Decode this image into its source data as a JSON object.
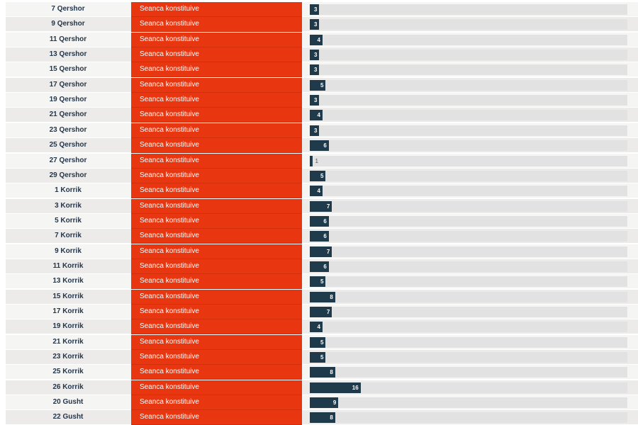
{
  "chart_data": {
    "type": "bar",
    "orientation": "horizontal",
    "xlim": [
      0,
      100
    ],
    "colors": {
      "status": "#e83611",
      "bar": "#1e3a4b",
      "track": "#e2e2e2"
    },
    "rows": [
      {
        "date": "7 Qershor",
        "status": "Seanca konstituive",
        "value": 3
      },
      {
        "date": "9 Qershor",
        "status": "Seanca konstituive",
        "value": 3
      },
      {
        "date": "11 Qershor",
        "status": "Seanca konstituive",
        "value": 4
      },
      {
        "date": "13 Qershor",
        "status": "Seanca konstituive",
        "value": 3
      },
      {
        "date": "15 Qershor",
        "status": "Seanca konstituive",
        "value": 3
      },
      {
        "date": "17 Qershor",
        "status": "Seanca konstituive",
        "value": 5
      },
      {
        "date": "19 Qershor",
        "status": "Seanca konstituive",
        "value": 3
      },
      {
        "date": "21 Qershor",
        "status": "Seanca konstituive",
        "value": 4
      },
      {
        "date": "23 Qershor",
        "status": "Seanca konstituive",
        "value": 3
      },
      {
        "date": "25 Qershor",
        "status": "Seanca konstituive",
        "value": 6
      },
      {
        "date": "27 Qershor",
        "status": "Seanca konstituive",
        "value": 1
      },
      {
        "date": "29 Qershor",
        "status": "Seanca konstituive",
        "value": 5
      },
      {
        "date": "1 Korrik",
        "status": "Seanca konstituive",
        "value": 4
      },
      {
        "date": "3 Korrik",
        "status": "Seanca konstituive",
        "value": 7
      },
      {
        "date": "5 Korrik",
        "status": "Seanca konstituive",
        "value": 6
      },
      {
        "date": "7 Korrik",
        "status": "Seanca konstituive",
        "value": 6
      },
      {
        "date": "9 Korrik",
        "status": "Seanca konstituive",
        "value": 7
      },
      {
        "date": "11 Korrik",
        "status": "Seanca konstituive",
        "value": 6
      },
      {
        "date": "13 Korrik",
        "status": "Seanca konstituive",
        "value": 5
      },
      {
        "date": "15 Korrik",
        "status": "Seanca konstituive",
        "value": 8
      },
      {
        "date": "17 Korrik",
        "status": "Seanca konstituive",
        "value": 7
      },
      {
        "date": "19 Korrik",
        "status": "Seanca konstituive",
        "value": 4
      },
      {
        "date": "21 Korrik",
        "status": "Seanca konstituive",
        "value": 5
      },
      {
        "date": "23 Korrik",
        "status": "Seanca konstituive",
        "value": 5
      },
      {
        "date": "25 Korrik",
        "status": "Seanca konstituive",
        "value": 8
      },
      {
        "date": "26 Korrik",
        "status": "Seanca konstituive",
        "value": 16
      },
      {
        "date": "20 Gusht",
        "status": "Seanca konstituive",
        "value": 9
      },
      {
        "date": "22 Gusht",
        "status": "Seanca konstituive",
        "value": 8
      }
    ]
  }
}
